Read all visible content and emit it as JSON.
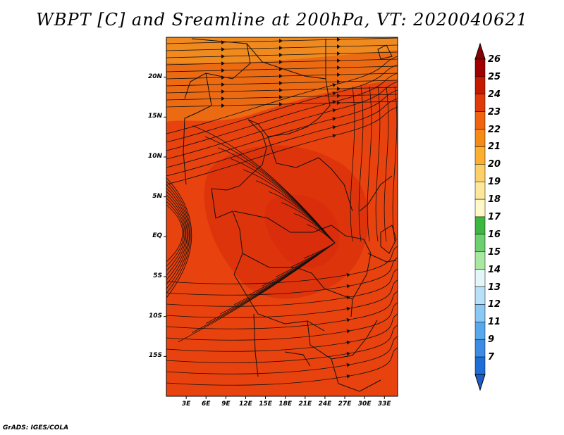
{
  "title": "WBPT [C] and Sreamline at 200hPa, VT: 2020040621",
  "footer": "GrADS: IGES/COLA",
  "map": {
    "lat_ticks": [
      "20N",
      "15N",
      "10N",
      "5N",
      "EQ",
      "5S",
      "10S",
      "15S"
    ],
    "lat_values": [
      20,
      15,
      10,
      5,
      0,
      -5,
      -10,
      -15
    ],
    "lon_ticks": [
      "3E",
      "6E",
      "9E",
      "12E",
      "15E",
      "18E",
      "21E",
      "24E",
      "27E",
      "30E",
      "33E"
    ],
    "lon_values": [
      3,
      6,
      9,
      12,
      15,
      18,
      21,
      24,
      27,
      30,
      33
    ],
    "lon_range": [
      0,
      35
    ],
    "lat_range": [
      -20,
      25
    ],
    "field_colors": {
      "dominant": "#e8420e",
      "warm_patch": "#d52a0b",
      "north_band": "#ec6a12",
      "north_edge": "#f08a1e"
    }
  },
  "colorbar": {
    "levels": [
      "26",
      "25",
      "24",
      "23",
      "22",
      "21",
      "20",
      "19",
      "18",
      "17",
      "16",
      "15",
      "14",
      "13",
      "12",
      "11",
      "9",
      "7"
    ],
    "colors": [
      "#a00000",
      "#c41a00",
      "#e03a0a",
      "#f0640f",
      "#f58a14",
      "#fbb030",
      "#fcd068",
      "#fde79b",
      "#fff8c8",
      "#3cb840",
      "#6cd06c",
      "#a8e8a0",
      "#e4f6f8",
      "#b8e0f8",
      "#8cc8f4",
      "#5aa8ec",
      "#3c8ce4",
      "#1e6ed8"
    ],
    "top_color": "#8b0000",
    "bottom_color": "#1e5cc8"
  }
}
